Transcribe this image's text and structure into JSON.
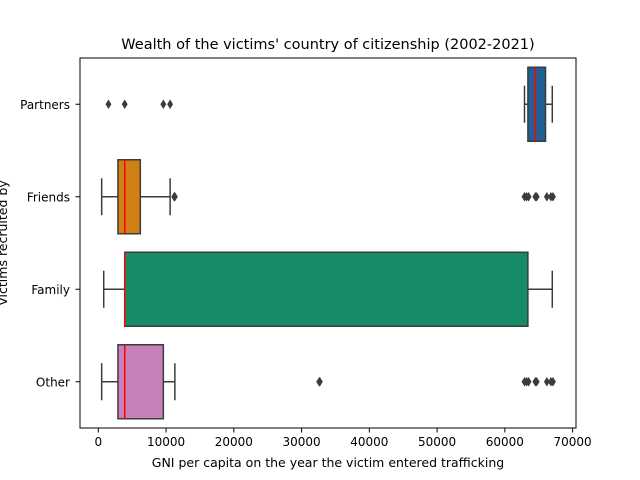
{
  "chart_data": {
    "type": "box",
    "title": "Wealth of the victims' country of citizenship (2002-2021)",
    "xlabel": "GNI per capita on the year the victim entered trafficking",
    "ylabel": "Victims recruited by",
    "xlim": [
      -2700,
      70500
    ],
    "xticks": [
      0,
      10000,
      20000,
      30000,
      40000,
      50000,
      60000,
      70000
    ],
    "xtick_labels": [
      "0",
      "10000",
      "20000",
      "30000",
      "40000",
      "50000",
      "60000",
      "70000"
    ],
    "grid": false,
    "median_color": "#ff0000",
    "categories": [
      "Partners",
      "Friends",
      "Family",
      "Other"
    ],
    "boxes": [
      {
        "name": "Partners",
        "color": "#1f5f93",
        "whisker_low": 62900,
        "q1": 63400,
        "median": 64500,
        "q3": 66000,
        "whisker_high": 67000,
        "outliers": [
          1500,
          3900,
          9600,
          10600
        ]
      },
      {
        "name": "Friends",
        "color": "#d07f14",
        "whisker_low": 500,
        "q1": 2900,
        "median": 3900,
        "q3": 6200,
        "whisker_high": 10600,
        "outliers": [
          11200,
          11300,
          62900,
          63200,
          63500,
          64500,
          64700,
          66200,
          66800,
          67100
        ]
      },
      {
        "name": "Family",
        "color": "#168b69",
        "whisker_low": 800,
        "q1": 3900,
        "median": 3900,
        "q3": 63400,
        "whisker_high": 67000,
        "outliers": []
      },
      {
        "name": "Other",
        "color": "#c682b8",
        "whisker_low": 500,
        "q1": 2900,
        "median": 3900,
        "q3": 9600,
        "whisker_high": 11300,
        "outliers": [
          32600,
          32700,
          62900,
          63200,
          63500,
          64500,
          64700,
          66200,
          66800,
          67100
        ]
      }
    ]
  }
}
